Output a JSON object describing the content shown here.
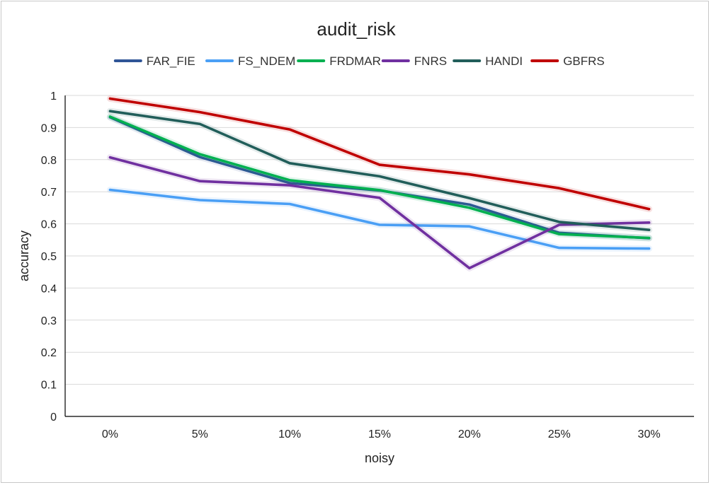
{
  "chart_data": {
    "type": "line",
    "title": "audit_risk",
    "xlabel": "noisy",
    "ylabel": "accuracy",
    "categories": [
      "0%",
      "5%",
      "10%",
      "15%",
      "20%",
      "25%",
      "30%"
    ],
    "ylim": [
      0,
      1
    ],
    "yticks": [
      "0",
      "0.1",
      "0.2",
      "0.3",
      "0.4",
      "0.5",
      "0.6",
      "0.7",
      "0.8",
      "0.9",
      "1"
    ],
    "ytick_values": [
      0,
      0.1,
      0.2,
      0.3,
      0.4,
      0.5,
      0.6,
      0.7,
      0.8,
      0.9,
      1
    ],
    "grid": true,
    "legend_position": "top",
    "series": [
      {
        "name": "FAR_FIE",
        "color": "#2f5597",
        "values": [
          0.932,
          0.808,
          0.727,
          0.704,
          0.66,
          0.572,
          0.555
        ]
      },
      {
        "name": "FS_NDEM",
        "color": "#4a9ff5",
        "values": [
          0.706,
          0.674,
          0.662,
          0.597,
          0.592,
          0.525,
          0.523
        ]
      },
      {
        "name": "FRDMAR",
        "color": "#00b050",
        "values": [
          0.934,
          0.817,
          0.736,
          0.705,
          0.65,
          0.568,
          0.556
        ]
      },
      {
        "name": "FNRS",
        "color": "#7030a0",
        "values": [
          0.807,
          0.733,
          0.72,
          0.681,
          0.462,
          0.597,
          0.604
        ]
      },
      {
        "name": "HANDI",
        "color": "#215e5a",
        "values": [
          0.951,
          0.911,
          0.789,
          0.748,
          0.68,
          0.606,
          0.581
        ]
      },
      {
        "name": "GBFRS",
        "color": "#c00000",
        "values": [
          0.99,
          0.948,
          0.894,
          0.784,
          0.754,
          0.711,
          0.646
        ]
      }
    ]
  }
}
